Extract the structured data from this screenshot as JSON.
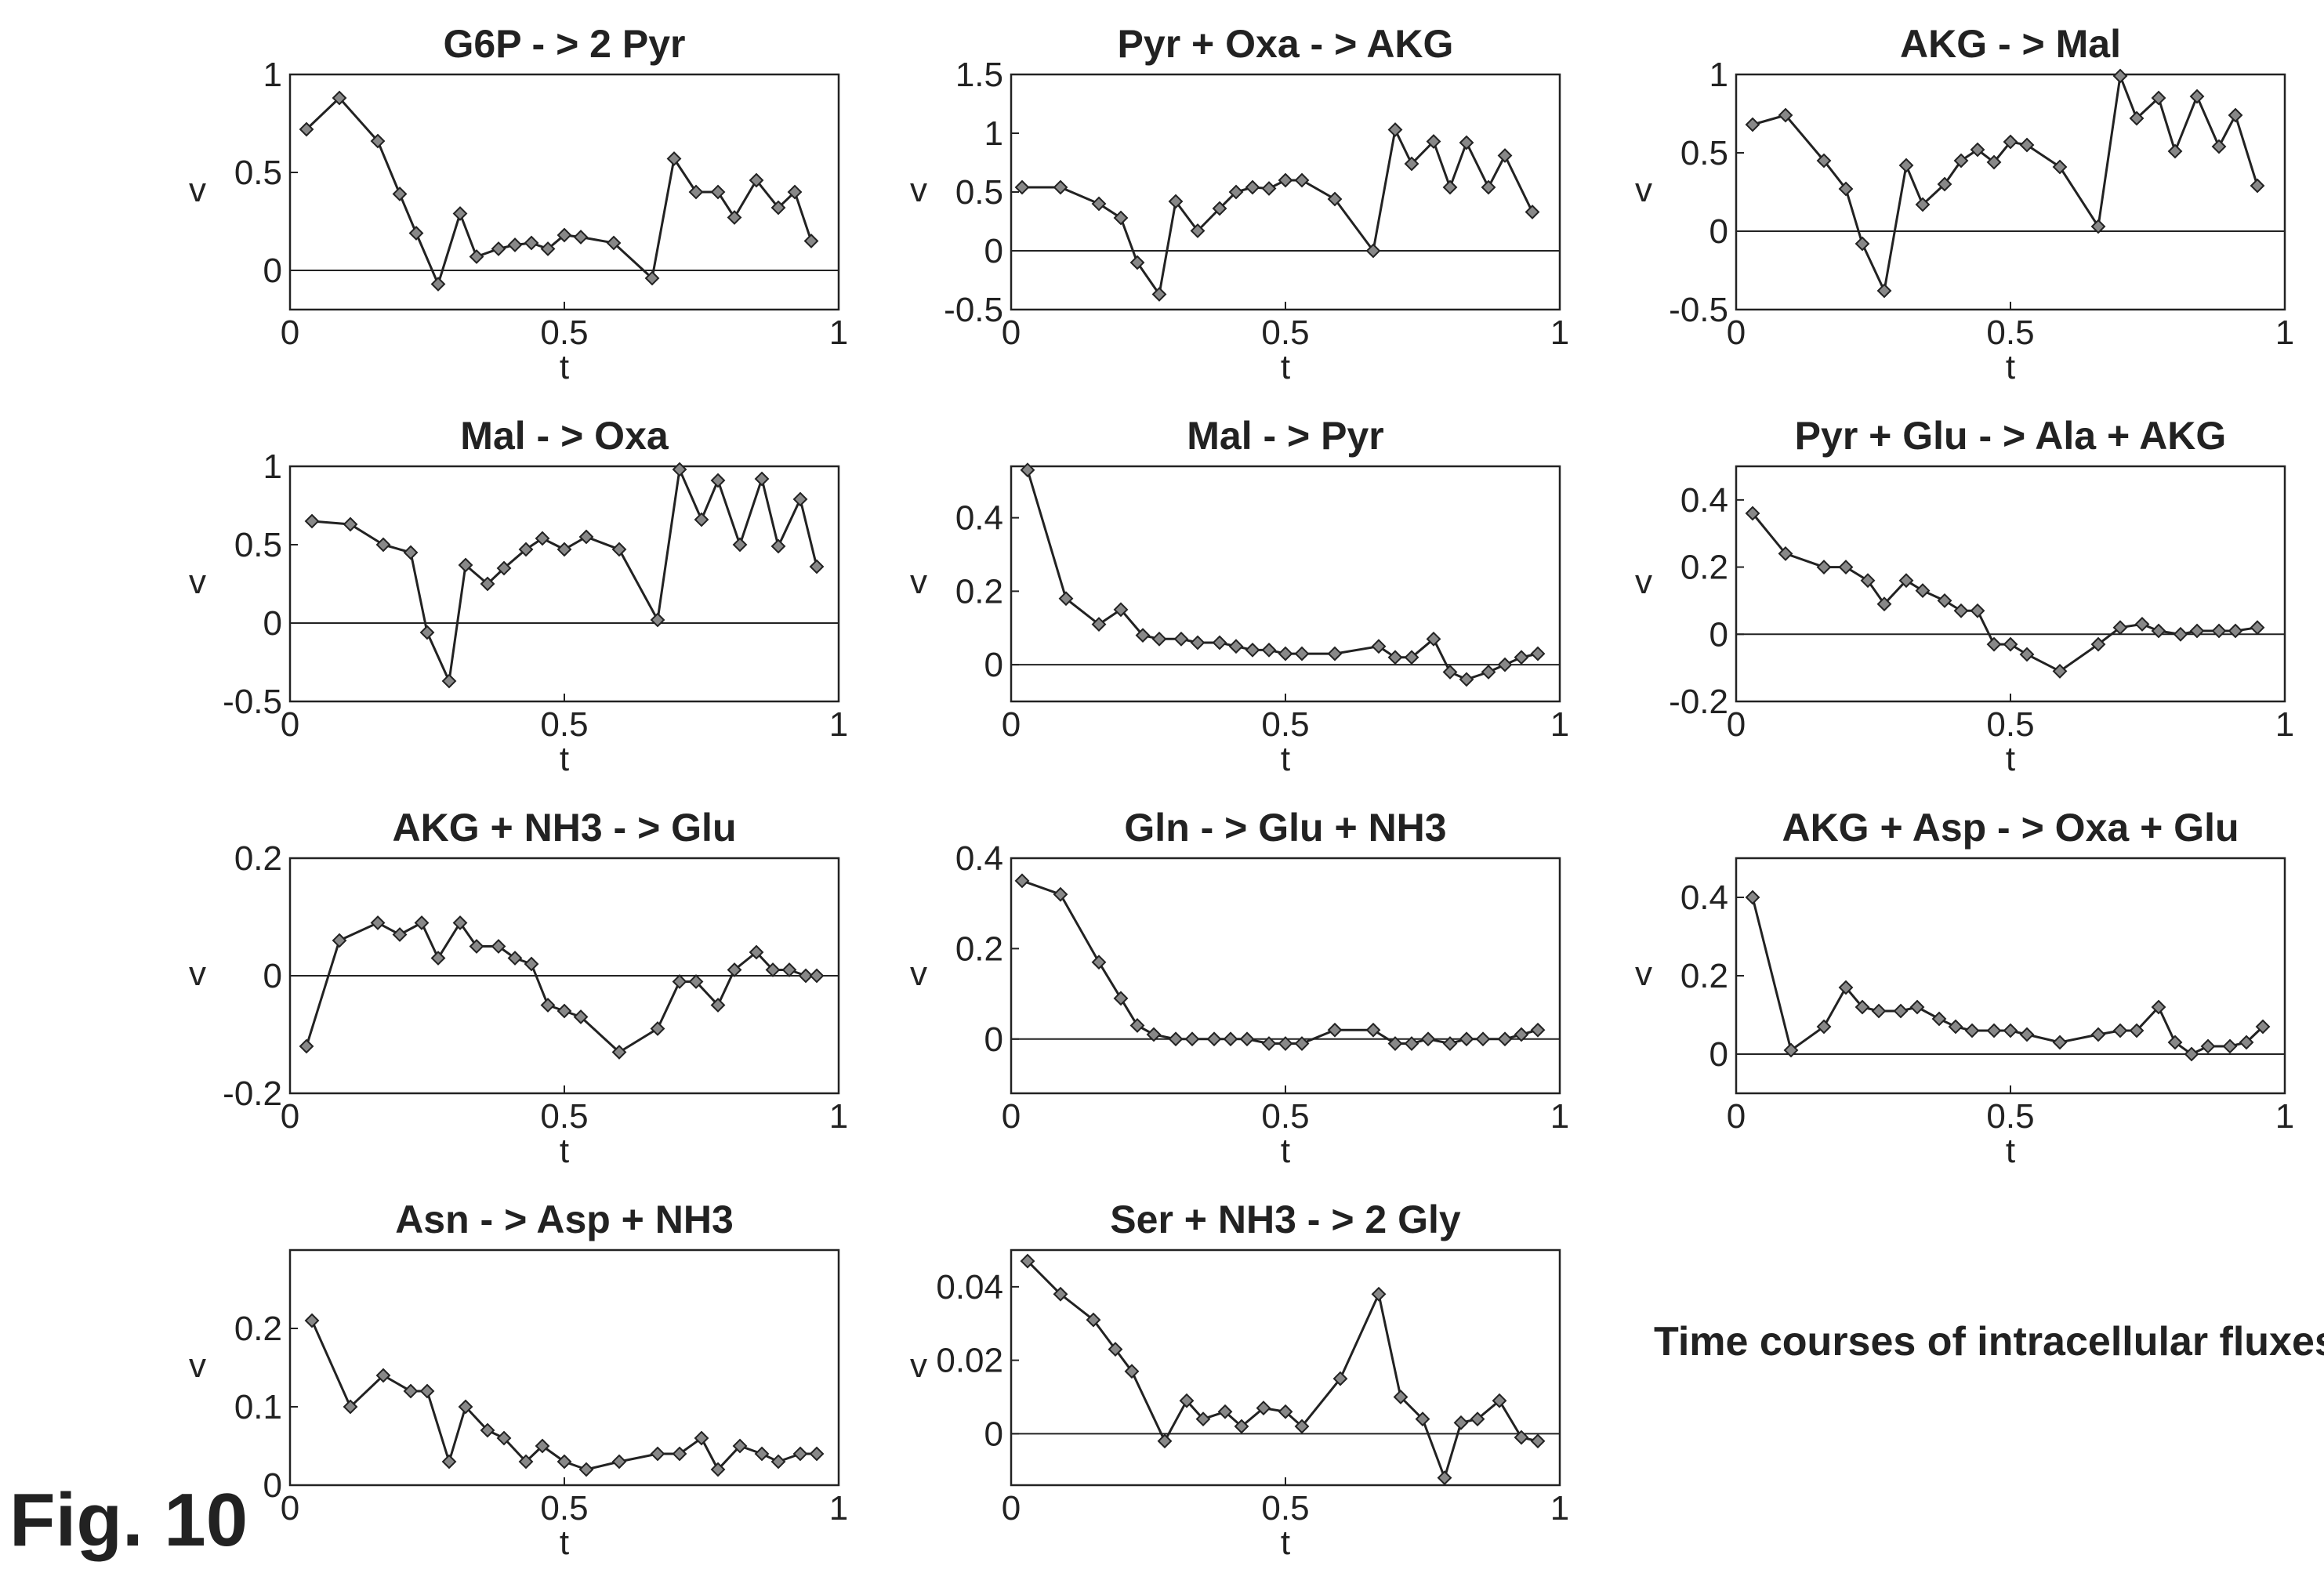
{
  "figure_label": "Fig. 10",
  "caption": "Time courses of intracellular fluxes",
  "chart_data": [
    {
      "type": "line",
      "title": "G6P - > 2 Pyr",
      "xlabel": "t",
      "ylabel": "v",
      "xlim": [
        0,
        1
      ],
      "ylim": [
        -0.2,
        1
      ],
      "xticks": [
        "0",
        "0.5",
        "1"
      ],
      "yticks": [
        "0",
        "0.5",
        "1"
      ],
      "ytick_values": [
        0,
        0.5,
        1
      ],
      "zero_line": true,
      "x": [
        0.03,
        0.09,
        0.16,
        0.2,
        0.23,
        0.27,
        0.31,
        0.34,
        0.38,
        0.41,
        0.44,
        0.47,
        0.5,
        0.53,
        0.59,
        0.66,
        0.7,
        0.74,
        0.78,
        0.81,
        0.85,
        0.89,
        0.92,
        0.95
      ],
      "y": [
        0.72,
        0.88,
        0.66,
        0.39,
        0.19,
        -0.07,
        0.29,
        0.07,
        0.11,
        0.13,
        0.14,
        0.11,
        0.18,
        0.17,
        0.14,
        -0.04,
        0.57,
        0.4,
        0.4,
        0.27,
        0.46,
        0.32,
        0.4,
        0.15
      ]
    },
    {
      "type": "line",
      "title": "Pyr + Oxa - > AKG",
      "xlabel": "t",
      "ylabel": "v",
      "xlim": [
        0,
        1
      ],
      "ylim": [
        -0.5,
        1.5
      ],
      "xticks": [
        "0",
        "0.5",
        "1"
      ],
      "yticks": [
        "-0.5",
        "0",
        "0.5",
        "1",
        "1.5"
      ],
      "ytick_values": [
        -0.5,
        0,
        0.5,
        1,
        1.5
      ],
      "zero_line": true,
      "x": [
        0.02,
        0.09,
        0.16,
        0.2,
        0.23,
        0.27,
        0.3,
        0.34,
        0.38,
        0.41,
        0.44,
        0.47,
        0.5,
        0.53,
        0.59,
        0.66,
        0.7,
        0.73,
        0.77,
        0.8,
        0.83,
        0.87,
        0.9,
        0.95
      ],
      "y": [
        0.54,
        0.54,
        0.4,
        0.28,
        -0.1,
        -0.37,
        0.42,
        0.17,
        0.36,
        0.5,
        0.54,
        0.53,
        0.6,
        0.6,
        0.44,
        0.0,
        1.03,
        0.74,
        0.93,
        0.54,
        0.92,
        0.54,
        0.81,
        0.33
      ]
    },
    {
      "type": "line",
      "title": "AKG - > Mal",
      "xlabel": "t",
      "ylabel": "v",
      "xlim": [
        0,
        1
      ],
      "ylim": [
        -0.5,
        1
      ],
      "xticks": [
        "0",
        "0.5",
        "1"
      ],
      "yticks": [
        "-0.5",
        "0",
        "0.5",
        "1"
      ],
      "ytick_values": [
        -0.5,
        0,
        0.5,
        1
      ],
      "zero_line": true,
      "x": [
        0.03,
        0.09,
        0.16,
        0.2,
        0.23,
        0.27,
        0.31,
        0.34,
        0.38,
        0.41,
        0.44,
        0.47,
        0.5,
        0.53,
        0.59,
        0.66,
        0.7,
        0.73,
        0.77,
        0.8,
        0.84,
        0.88,
        0.91,
        0.95
      ],
      "y": [
        0.68,
        0.74,
        0.45,
        0.27,
        -0.08,
        -0.38,
        0.42,
        0.17,
        0.3,
        0.45,
        0.52,
        0.44,
        0.57,
        0.55,
        0.41,
        0.03,
        0.99,
        0.72,
        0.85,
        0.51,
        0.86,
        0.54,
        0.74,
        0.29
      ]
    },
    {
      "type": "line",
      "title": "Mal - > Oxa",
      "xlabel": "t",
      "ylabel": "v",
      "xlim": [
        0,
        1
      ],
      "ylim": [
        -0.5,
        1
      ],
      "xticks": [
        "0",
        "0.5",
        "1"
      ],
      "yticks": [
        "-0.5",
        "0",
        "0.5",
        "1"
      ],
      "ytick_values": [
        -0.5,
        0,
        0.5,
        1
      ],
      "zero_line": true,
      "x": [
        0.04,
        0.11,
        0.17,
        0.22,
        0.25,
        0.29,
        0.32,
        0.36,
        0.39,
        0.43,
        0.46,
        0.5,
        0.54,
        0.6,
        0.67,
        0.71,
        0.75,
        0.78,
        0.82,
        0.86,
        0.89,
        0.93,
        0.96
      ],
      "y": [
        0.65,
        0.63,
        0.5,
        0.45,
        -0.06,
        -0.37,
        0.37,
        0.25,
        0.35,
        0.47,
        0.54,
        0.47,
        0.55,
        0.47,
        0.02,
        0.98,
        0.66,
        0.91,
        0.5,
        0.92,
        0.49,
        0.79,
        0.36
      ]
    },
    {
      "type": "line",
      "title": "Mal - > Pyr",
      "xlabel": "t",
      "ylabel": "v",
      "xlim": [
        0,
        1
      ],
      "ylim": [
        -0.1,
        0.54
      ],
      "xticks": [
        "0",
        "0.5",
        "1"
      ],
      "yticks": [
        "0",
        "0.2",
        "0.4"
      ],
      "ytick_values": [
        0,
        0.2,
        0.4
      ],
      "zero_line": true,
      "x": [
        0.03,
        0.1,
        0.16,
        0.2,
        0.24,
        0.27,
        0.31,
        0.34,
        0.38,
        0.41,
        0.44,
        0.47,
        0.5,
        0.53,
        0.59,
        0.67,
        0.7,
        0.73,
        0.77,
        0.8,
        0.83,
        0.87,
        0.9,
        0.93,
        0.96
      ],
      "y": [
        0.53,
        0.18,
        0.11,
        0.15,
        0.08,
        0.07,
        0.07,
        0.06,
        0.06,
        0.05,
        0.04,
        0.04,
        0.03,
        0.03,
        0.03,
        0.05,
        0.02,
        0.02,
        0.07,
        -0.02,
        -0.04,
        -0.02,
        0.0,
        0.02,
        0.03
      ]
    },
    {
      "type": "line",
      "title": "Pyr + Glu - > Ala + AKG",
      "xlabel": "t",
      "ylabel": "v",
      "xlim": [
        0,
        1
      ],
      "ylim": [
        -0.2,
        0.5
      ],
      "xticks": [
        "0",
        "0.5",
        "1"
      ],
      "yticks": [
        "-0.2",
        "0",
        "0.2",
        "0.4"
      ],
      "ytick_values": [
        -0.2,
        0,
        0.2,
        0.4
      ],
      "zero_line": true,
      "x": [
        0.03,
        0.09,
        0.16,
        0.2,
        0.24,
        0.27,
        0.31,
        0.34,
        0.38,
        0.41,
        0.44,
        0.47,
        0.5,
        0.53,
        0.59,
        0.66,
        0.7,
        0.74,
        0.77,
        0.81,
        0.84,
        0.88,
        0.91,
        0.95
      ],
      "y": [
        0.36,
        0.24,
        0.2,
        0.2,
        0.16,
        0.09,
        0.16,
        0.13,
        0.1,
        0.07,
        0.07,
        -0.03,
        -0.03,
        -0.06,
        -0.11,
        -0.03,
        0.02,
        0.03,
        0.01,
        0.0,
        0.01,
        0.01,
        0.01,
        0.02
      ]
    },
    {
      "type": "line",
      "title": "AKG + NH3 - > Glu",
      "xlabel": "t",
      "ylabel": "v",
      "xlim": [
        0,
        1
      ],
      "ylim": [
        -0.2,
        0.2
      ],
      "xticks": [
        "0",
        "0.5",
        "1"
      ],
      "yticks": [
        "-0.2",
        "0",
        "0.2"
      ],
      "ytick_values": [
        -0.2,
        0,
        0.2
      ],
      "zero_line": true,
      "x": [
        0.03,
        0.09,
        0.16,
        0.2,
        0.24,
        0.27,
        0.31,
        0.34,
        0.38,
        0.41,
        0.44,
        0.47,
        0.5,
        0.53,
        0.6,
        0.67,
        0.71,
        0.74,
        0.78,
        0.81,
        0.85,
        0.88,
        0.91,
        0.94,
        0.96
      ],
      "y": [
        -0.12,
        0.06,
        0.09,
        0.07,
        0.09,
        0.03,
        0.09,
        0.05,
        0.05,
        0.03,
        0.02,
        -0.05,
        -0.06,
        -0.07,
        -0.13,
        -0.09,
        -0.01,
        -0.01,
        -0.05,
        0.01,
        0.04,
        0.01,
        0.01,
        0.0,
        0.0
      ]
    },
    {
      "type": "line",
      "title": "Gln - > Glu + NH3",
      "xlabel": "t",
      "ylabel": "v",
      "xlim": [
        0,
        1
      ],
      "ylim": [
        -0.12,
        0.4
      ],
      "xticks": [
        "0",
        "0.5",
        "1"
      ],
      "yticks": [
        "0",
        "0.2",
        "0.4"
      ],
      "ytick_values": [
        0,
        0.2,
        0.4
      ],
      "zero_line": true,
      "x": [
        0.02,
        0.09,
        0.16,
        0.2,
        0.23,
        0.26,
        0.3,
        0.33,
        0.37,
        0.4,
        0.43,
        0.47,
        0.5,
        0.53,
        0.59,
        0.66,
        0.7,
        0.73,
        0.76,
        0.8,
        0.83,
        0.86,
        0.9,
        0.93,
        0.96
      ],
      "y": [
        0.35,
        0.32,
        0.17,
        0.09,
        0.03,
        0.01,
        0.0,
        0.0,
        0.0,
        0.0,
        0.0,
        -0.01,
        -0.01,
        -0.01,
        0.02,
        0.02,
        -0.01,
        -0.01,
        0.0,
        -0.01,
        0.0,
        0.0,
        0.0,
        0.01,
        0.02
      ]
    },
    {
      "type": "line",
      "title": "AKG + Asp - > Oxa + Glu",
      "xlabel": "t",
      "ylabel": "v",
      "xlim": [
        0,
        1
      ],
      "ylim": [
        -0.1,
        0.5
      ],
      "xticks": [
        "0",
        "0.5",
        "1"
      ],
      "yticks": [
        "0",
        "0.2",
        "0.4"
      ],
      "ytick_values": [
        0,
        0.2,
        0.4
      ],
      "zero_line": true,
      "x": [
        0.03,
        0.1,
        0.16,
        0.2,
        0.23,
        0.26,
        0.3,
        0.33,
        0.37,
        0.4,
        0.43,
        0.47,
        0.5,
        0.53,
        0.59,
        0.66,
        0.7,
        0.73,
        0.77,
        0.8,
        0.83,
        0.86,
        0.9,
        0.93,
        0.96
      ],
      "y": [
        0.4,
        0.01,
        0.07,
        0.17,
        0.12,
        0.11,
        0.11,
        0.12,
        0.09,
        0.07,
        0.06,
        0.06,
        0.06,
        0.05,
        0.03,
        0.05,
        0.06,
        0.06,
        0.12,
        0.03,
        0.0,
        0.02,
        0.02,
        0.03,
        0.07
      ]
    },
    {
      "type": "line",
      "title": "Asn - > Asp + NH3",
      "xlabel": "t",
      "ylabel": "v",
      "xlim": [
        0,
        1
      ],
      "ylim": [
        0,
        0.3
      ],
      "xticks": [
        "0",
        "0.5",
        "1"
      ],
      "yticks": [
        "0",
        "0.1",
        "0.2"
      ],
      "ytick_values": [
        0,
        0.1,
        0.2
      ],
      "zero_line": false,
      "x": [
        0.04,
        0.11,
        0.17,
        0.22,
        0.25,
        0.29,
        0.32,
        0.36,
        0.39,
        0.43,
        0.46,
        0.5,
        0.54,
        0.6,
        0.67,
        0.71,
        0.75,
        0.78,
        0.82,
        0.86,
        0.89,
        0.93,
        0.96
      ],
      "y": [
        0.21,
        0.1,
        0.14,
        0.12,
        0.12,
        0.03,
        0.1,
        0.07,
        0.06,
        0.03,
        0.05,
        0.03,
        0.02,
        0.03,
        0.04,
        0.04,
        0.06,
        0.02,
        0.05,
        0.04,
        0.03,
        0.04,
        0.04
      ]
    },
    {
      "type": "line",
      "title": "Ser + NH3 - > 2 Gly",
      "xlabel": "t",
      "ylabel": "v",
      "xlim": [
        0,
        1
      ],
      "ylim": [
        -0.014,
        0.05
      ],
      "xticks": [
        "0",
        "0.5",
        "1"
      ],
      "yticks": [
        "0",
        "0.02",
        "0.04"
      ],
      "ytick_values": [
        0,
        0.02,
        0.04
      ],
      "zero_line": true,
      "x": [
        0.03,
        0.09,
        0.15,
        0.19,
        0.22,
        0.28,
        0.32,
        0.35,
        0.39,
        0.42,
        0.46,
        0.5,
        0.53,
        0.6,
        0.67,
        0.71,
        0.75,
        0.79,
        0.82,
        0.85,
        0.89,
        0.93,
        0.96
      ],
      "y": [
        0.047,
        0.038,
        0.031,
        0.023,
        0.017,
        -0.002,
        0.009,
        0.004,
        0.006,
        0.002,
        0.007,
        0.006,
        0.002,
        0.015,
        0.038,
        0.01,
        0.004,
        -0.012,
        0.003,
        0.004,
        0.009,
        -0.001,
        -0.002
      ]
    }
  ]
}
